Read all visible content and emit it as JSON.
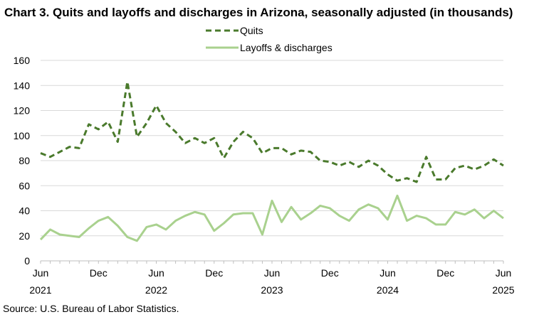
{
  "chart_data": {
    "type": "line",
    "title": "Chart 3. Quits and layoffs and discharges in Arizona, seasonally adjusted (in thousands)",
    "source": "Source: U.S. Bureau of Labor Statistics.",
    "ylim": [
      0,
      160
    ],
    "yticks": [
      "0",
      "20",
      "40",
      "60",
      "80",
      "100",
      "120",
      "140",
      "160"
    ],
    "grid": true,
    "legend_position": "top-center",
    "x_tick_labels": [
      {
        "month": "Jun",
        "year": "2021"
      },
      {
        "month": "Dec",
        "year": ""
      },
      {
        "month": "Jun",
        "year": "2022"
      },
      {
        "month": "Dec",
        "year": ""
      },
      {
        "month": "Jun",
        "year": "2023"
      },
      {
        "month": "Dec",
        "year": ""
      },
      {
        "month": "Jun",
        "year": "2024"
      },
      {
        "month": "Dec",
        "year": ""
      },
      {
        "month": "Jun",
        "year": "2025"
      }
    ],
    "x": [
      "2021-06",
      "2021-07",
      "2021-08",
      "2021-09",
      "2021-10",
      "2021-11",
      "2021-12",
      "2022-01",
      "2022-02",
      "2022-03",
      "2022-04",
      "2022-05",
      "2022-06",
      "2022-07",
      "2022-08",
      "2022-09",
      "2022-10",
      "2022-11",
      "2022-12",
      "2023-01",
      "2023-02",
      "2023-03",
      "2023-04",
      "2023-05",
      "2023-06",
      "2023-07",
      "2023-08",
      "2023-09",
      "2023-10",
      "2023-11",
      "2023-12",
      "2024-01",
      "2024-02",
      "2024-03",
      "2024-04",
      "2024-05",
      "2024-06",
      "2024-07",
      "2024-08",
      "2024-09",
      "2024-10",
      "2024-11",
      "2024-12",
      "2025-01",
      "2025-02",
      "2025-03",
      "2025-04",
      "2025-05",
      "2025-06"
    ],
    "series": [
      {
        "name": "Quits",
        "color": "#4a7a2c",
        "style": "dashed",
        "values": [
          86,
          83,
          87,
          91,
          90,
          109,
          105,
          111,
          95,
          143,
          99,
          110,
          124,
          110,
          103,
          94,
          98,
          94,
          98,
          82,
          95,
          103,
          98,
          86,
          90,
          90,
          85,
          88,
          87,
          80,
          79,
          76,
          79,
          75,
          80,
          76,
          69,
          64,
          66,
          63,
          83,
          65,
          65,
          74,
          76,
          73,
          76,
          81,
          76
        ]
      },
      {
        "name": "Layoffs & discharges",
        "color": "#a9d18e",
        "style": "solid",
        "values": [
          17,
          25,
          21,
          20,
          19,
          26,
          32,
          35,
          28,
          19,
          16,
          27,
          29,
          25,
          32,
          36,
          39,
          37,
          24,
          30,
          37,
          38,
          38,
          21,
          48,
          31,
          43,
          33,
          38,
          44,
          42,
          36,
          32,
          41,
          45,
          42,
          33,
          52,
          32,
          36,
          34,
          29,
          29,
          39,
          37,
          41,
          34,
          40,
          34
        ]
      }
    ]
  }
}
